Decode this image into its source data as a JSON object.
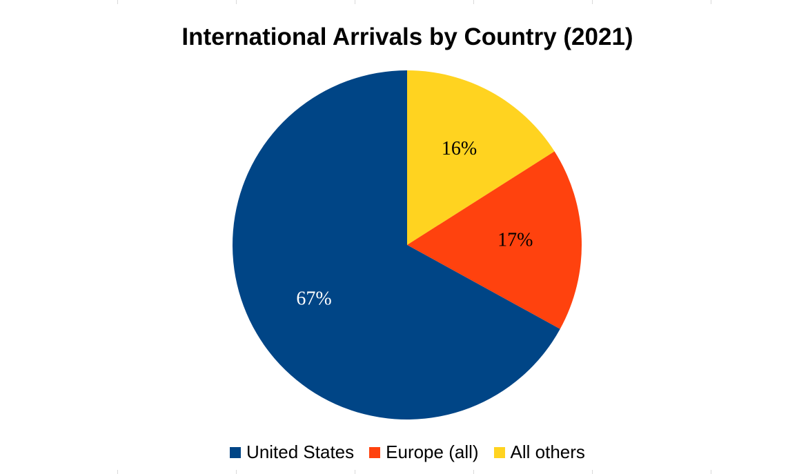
{
  "chart_data": {
    "type": "pie",
    "title": "International Arrivals by Country (2021)",
    "categories": [
      "United States",
      "Europe (all)",
      "All others"
    ],
    "values": [
      67,
      17,
      16
    ],
    "data_labels": [
      "67%",
      "17%",
      "16%"
    ],
    "colors": [
      "#004586",
      "#ff420e",
      "#ffd320"
    ],
    "label_colors": [
      "#ffffff",
      "#000000",
      "#000000"
    ],
    "legend": {
      "position": "bottom"
    }
  }
}
